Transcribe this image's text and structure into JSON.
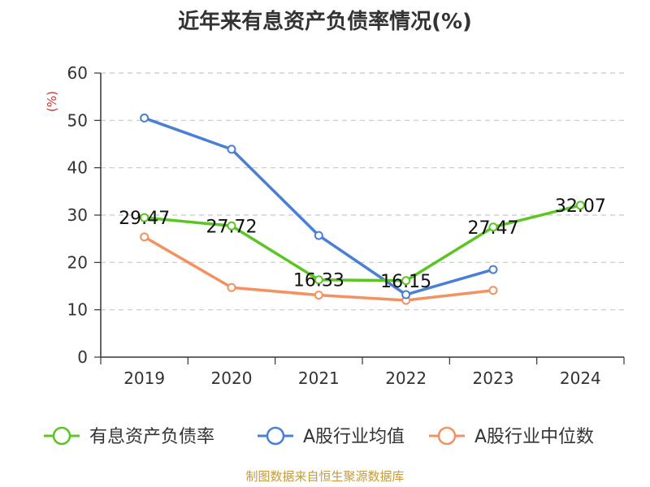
{
  "page": {
    "title": "近年来有息资产负债率情况(%)",
    "source": "制图数据来自恒生聚源数据库"
  },
  "chart_data": {
    "type": "line",
    "title": "近年来有息资产负债率情况(%)",
    "xlabel": "",
    "ylabel": "(%)",
    "categories": [
      "2019",
      "2020",
      "2021",
      "2022",
      "2023",
      "2024"
    ],
    "ylim": [
      0,
      60
    ],
    "yticks": [
      0,
      10,
      20,
      30,
      40,
      50,
      60
    ],
    "grid": true,
    "legend_position": "bottom",
    "series": [
      {
        "name": "有息资产负债率",
        "color": "#5bc523",
        "values": [
          29.47,
          27.72,
          16.33,
          16.15,
          27.47,
          32.07
        ],
        "labels": [
          "29.47",
          "27.72",
          "16.33",
          "16.15",
          "27.47",
          "32.07"
        ]
      },
      {
        "name": "A股行业均值",
        "color": "#4a7fd6",
        "values": [
          50.5,
          43.9,
          25.7,
          13.2,
          18.5,
          null
        ]
      },
      {
        "name": "A股行业中位数",
        "color": "#f39160",
        "values": [
          25.4,
          14.7,
          13.1,
          12.0,
          14.1,
          null
        ]
      }
    ]
  }
}
